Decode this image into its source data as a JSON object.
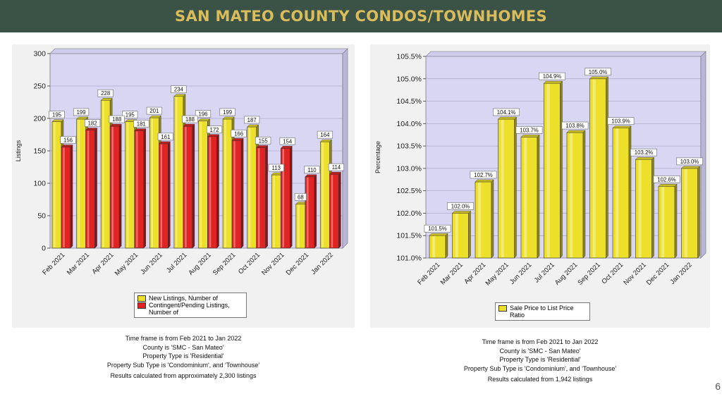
{
  "header": {
    "title": "SAN MATEO COUNTY CONDOS/TOWNHOMES"
  },
  "page_number": "6",
  "colors": {
    "banner": "#3b5247",
    "banner_text": "#d9bc5c",
    "yellow": "#ede02a",
    "red": "#e02424",
    "plot_bg": "#d9d6f4"
  },
  "left": {
    "legend": [
      {
        "label": "New Listings, Number of",
        "color": "#ede02a"
      },
      {
        "label": "Contingent/Pending Listings, Number of",
        "color": "#e02424"
      }
    ],
    "notes": [
      "Time frame is from Feb 2021 to Jan 2022",
      "County is 'SMC - San Mateo'",
      "Property Type is 'Residential'",
      "Property Sub Type is 'Condominium', and 'Townhouse'",
      "Results calculated from approximately 2,300 listings"
    ]
  },
  "right": {
    "legend": [
      {
        "label": "Sale Price to List Price Ratio",
        "color": "#ede02a"
      }
    ],
    "notes": [
      "Time frame is from Feb 2021 to Jan 2022",
      "County is 'SMC - San Mateo'",
      "Property Type is 'Residential'",
      "Property Sub Type is 'Condominium', and 'Townhouse'",
      "Results calculated from 1,942 listings"
    ]
  },
  "chart_data": [
    {
      "type": "bar",
      "title": "",
      "xlabel": "",
      "ylabel": "Listings",
      "ylim": [
        0,
        300
      ],
      "yticks": [
        "0",
        "50",
        "100",
        "150",
        "200",
        "250",
        "300"
      ],
      "categories": [
        "Feb 2021",
        "Mar 2021",
        "Apr 2021",
        "May 2021",
        "Jun 2021",
        "Jul 2021",
        "Aug 2021",
        "Sep 2021",
        "Oct 2021",
        "Nov 2021",
        "Dec 2021",
        "Jan 2022"
      ],
      "series": [
        {
          "name": "New Listings, Number of",
          "values": [
            195,
            199,
            228,
            195,
            201,
            234,
            196,
            199,
            187,
            113,
            68,
            164
          ],
          "labels": [
            "195",
            "199",
            "228",
            "195",
            "201",
            "234",
            "196",
            "199",
            "187",
            "113",
            "68",
            "164"
          ]
        },
        {
          "name": "Contingent/Pending Listings, Number of",
          "values": [
            156,
            182,
            188,
            181,
            161,
            188,
            172,
            166,
            155,
            154,
            110,
            114
          ],
          "labels": [
            "156",
            "182",
            "188",
            "181",
            "161",
            "188",
            "172",
            "166",
            "155",
            "154",
            "110",
            "114"
          ]
        }
      ],
      "grid": true,
      "legend": "bottom"
    },
    {
      "type": "bar",
      "title": "",
      "xlabel": "",
      "ylabel": "Percentage",
      "ylim": [
        101.0,
        105.5
      ],
      "yticks": [
        "101.0%",
        "101.5%",
        "102.0%",
        "102.5%",
        "103.0%",
        "103.5%",
        "104.0%",
        "104.5%",
        "105.0%",
        "105.5%"
      ],
      "categories": [
        "Feb 2021",
        "Mar 2021",
        "Apr 2021",
        "May 2021",
        "Jun 2021",
        "Jul 2021",
        "Aug 2021",
        "Sep 2021",
        "Oct 2021",
        "Nov 2021",
        "Dec 2021",
        "Jan 2022"
      ],
      "series": [
        {
          "name": "Sale Price to List Price Ratio",
          "values": [
            101.5,
            102.0,
            102.7,
            104.1,
            103.7,
            104.9,
            103.8,
            105.0,
            103.9,
            103.2,
            102.6,
            103.0
          ],
          "labels": [
            "101.5%",
            "102.0%",
            "102.7%",
            "104.1%",
            "103.7%",
            "104.9%",
            "103.8%",
            "105.0%",
            "103.9%",
            "103.2%",
            "102.6%",
            "103.0%"
          ]
        }
      ],
      "grid": true,
      "legend": "bottom"
    }
  ]
}
